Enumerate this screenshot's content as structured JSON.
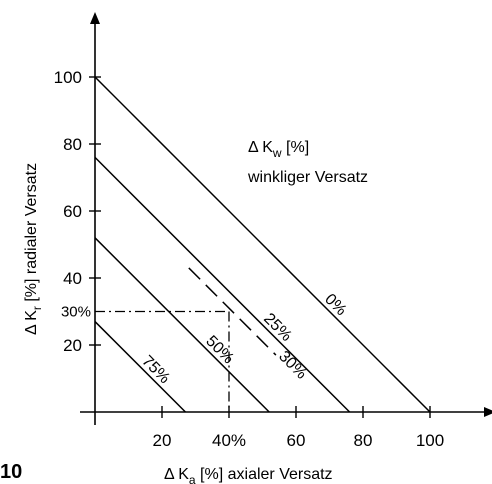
{
  "chart_data": {
    "type": "line",
    "figure_number": "10",
    "x_axis": {
      "symbol": "Δ K",
      "subscript": "a",
      "label": " [%]  axialer Versatz",
      "ticks": [
        20,
        40,
        60,
        80,
        100
      ],
      "tick_suffix": [
        "",
        "%",
        "",
        "",
        ""
      ],
      "range": [
        0,
        115
      ]
    },
    "y_axis": {
      "symbol": "Δ K",
      "subscript": "r",
      "label": " [%]  radialer Versatz",
      "ticks": [
        20,
        40,
        60,
        80,
        100
      ],
      "range": [
        0,
        120
      ]
    },
    "legend": {
      "symbol": "Δ K",
      "subscript": "w",
      "unit": " [%]",
      "caption": "winkliger Versatz"
    },
    "series": [
      {
        "name": "0%",
        "x": [
          0,
          100
        ],
        "y": [
          100,
          0
        ]
      },
      {
        "name": "25%",
        "x": [
          0,
          76
        ],
        "y": [
          76,
          0
        ]
      },
      {
        "name": "50%",
        "x": [
          0,
          52
        ],
        "y": [
          52,
          0
        ]
      },
      {
        "name": "75%",
        "x": [
          0,
          27
        ],
        "y": [
          27,
          0
        ]
      }
    ],
    "dashed_line": {
      "name": "30%",
      "x": [
        28,
        54
      ],
      "y": [
        43,
        17
      ]
    },
    "example": {
      "x": 40,
      "y": 30,
      "x_label": "40%",
      "y_label": "30%"
    }
  }
}
